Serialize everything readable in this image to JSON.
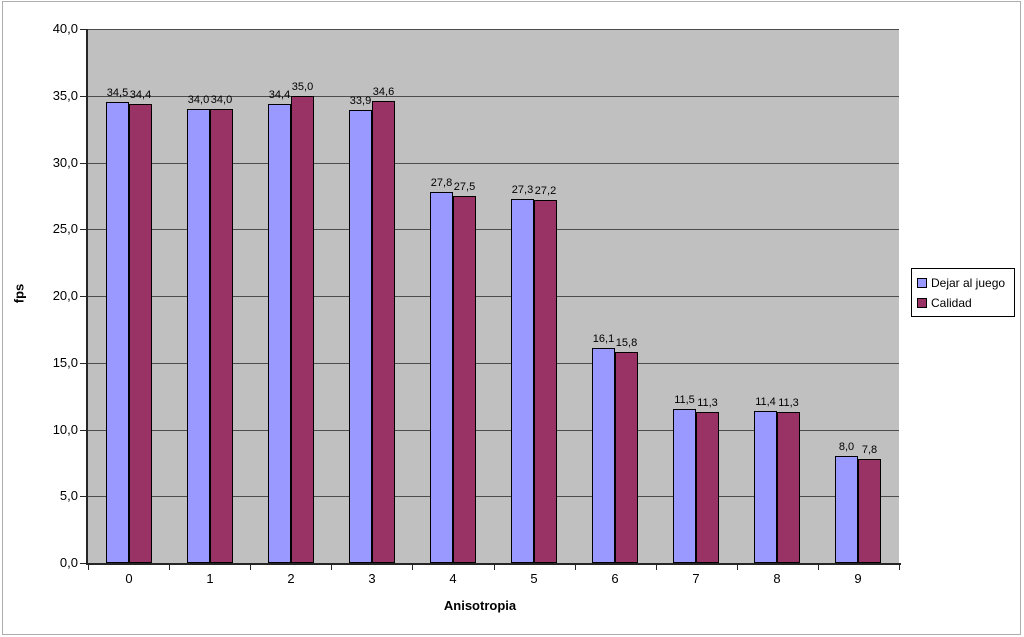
{
  "chart_data": {
    "type": "bar",
    "title": "",
    "xlabel": "Anisotropia",
    "ylabel": "fps",
    "categories": [
      "0",
      "1",
      "2",
      "3",
      "4",
      "5",
      "6",
      "7",
      "8",
      "9"
    ],
    "series": [
      {
        "name": "Dejar al juego",
        "color": "#9999FF",
        "values": [
          34.5,
          34.0,
          34.4,
          33.9,
          27.8,
          27.3,
          16.1,
          11.5,
          11.4,
          8.0
        ],
        "value_labels": [
          "34,5",
          "34,0",
          "34,4",
          "33,9",
          "27,8",
          "27,3",
          "16,1",
          "11,5",
          "11,4",
          "8,0"
        ]
      },
      {
        "name": "Calidad",
        "color": "#993366",
        "values": [
          34.4,
          34.0,
          35.0,
          34.6,
          27.5,
          27.2,
          15.8,
          11.3,
          11.3,
          7.8
        ],
        "value_labels": [
          "34,4",
          "34,0",
          "35,0",
          "34,6",
          "27,5",
          "27,2",
          "15,8",
          "11,3",
          "11,3",
          "7,8"
        ]
      }
    ],
    "y_axis": {
      "min": 0,
      "max": 40,
      "step": 5,
      "tick_labels": [
        "0,0",
        "5,0",
        "10,0",
        "15,0",
        "20,0",
        "25,0",
        "30,0",
        "35,0",
        "40,0"
      ]
    },
    "ylim": [
      0,
      40
    ],
    "grid": true,
    "legend": {
      "position": "right",
      "entries": [
        "Dejar al juego",
        "Calidad"
      ]
    },
    "colors": {
      "plot_background": "#C0C0C0",
      "gridline": "#4D4D4D",
      "axis": "#262626",
      "bar_border": "#000000",
      "label_text": "#000000"
    }
  }
}
